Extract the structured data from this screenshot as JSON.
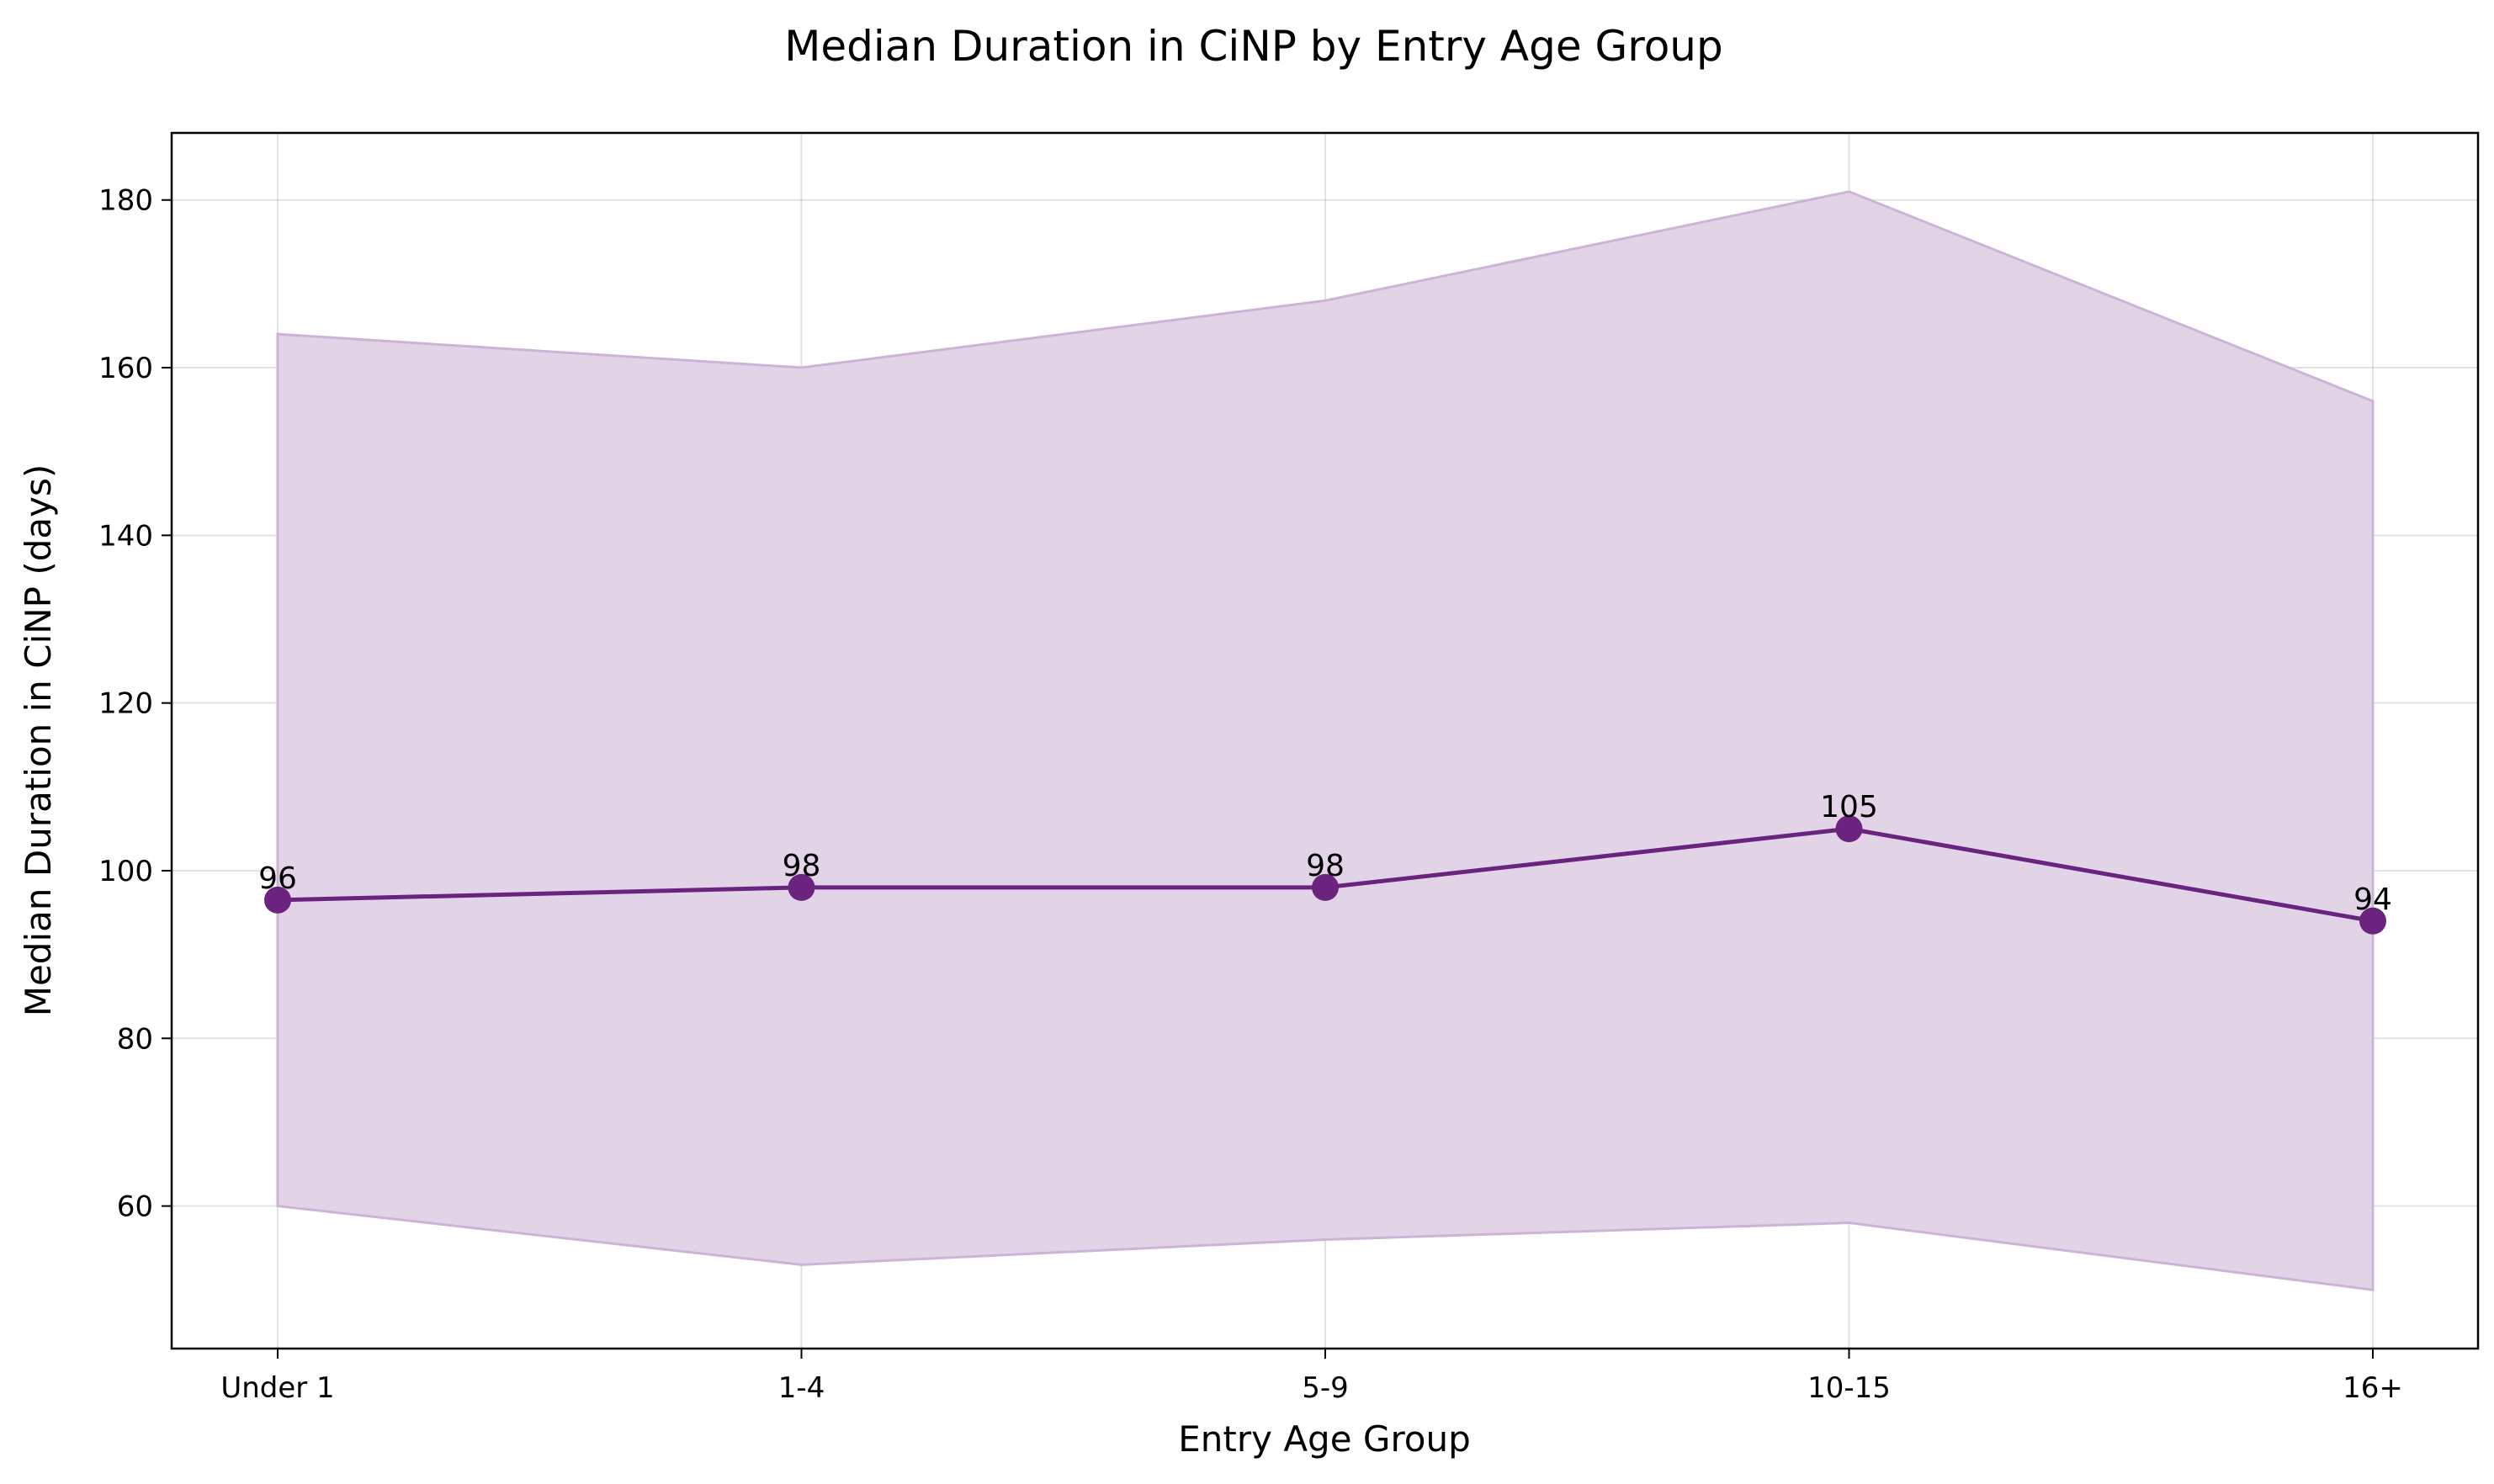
{
  "chart_data": {
    "type": "line",
    "title": "Median Duration in CiNP by Entry Age Group",
    "xlabel": "Entry Age Group",
    "ylabel": "Median Duration in CiNP (days)",
    "categories": [
      "Under 1",
      "1-4",
      "5-9",
      "10-15",
      "16+"
    ],
    "series": [
      {
        "values": [
          96.5,
          98,
          98,
          105,
          94
        ],
        "data_labels": [
          "96",
          "98",
          "98",
          "105",
          "94"
        ],
        "band_lower": [
          60,
          53,
          56,
          58,
          50
        ],
        "band_upper": [
          164,
          160,
          168,
          181,
          156
        ]
      }
    ],
    "yticks": [
      60,
      80,
      100,
      120,
      140,
      160,
      180
    ],
    "ylim": [
      43,
      188
    ],
    "grid": true,
    "colors": {
      "line": "#6a2480",
      "band_fill": "#e2d4e6",
      "band_edge": "#cdb3d5"
    }
  }
}
